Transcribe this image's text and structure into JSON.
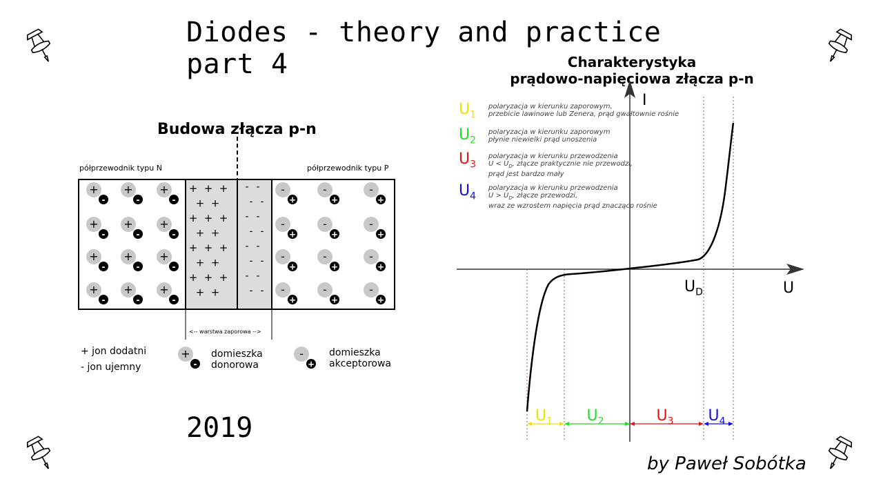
{
  "title": {
    "line1": "Diodes - theory and practice",
    "line2": "part 4"
  },
  "year": "2019",
  "author": "by Paweł Sobótka",
  "junction": {
    "heading": "Budowa złącza p-n",
    "n_label": "półprzewodnik typu  N",
    "p_label": "półprzewodnik typu  P",
    "depletion_label": "<-- warstwa zaporowa -->",
    "plus": "+",
    "minus": "-"
  },
  "legend": {
    "pos_ion": "+ jon dodatni",
    "neg_ion": "- jon ujemny",
    "donor_line1": "domieszka",
    "donor_line2": "donorowa",
    "acceptor_line1": "domieszka",
    "acceptor_line2": "akceptorowa"
  },
  "iv_chart": {
    "heading_line1": "Charakterystyka",
    "heading_line2": "prądowo-napięciowa złącza p-n",
    "axis_y": "I",
    "axis_x": "U",
    "ud_label": "U",
    "ud_sub": "D",
    "regions": [
      {
        "symbol": "U",
        "sub": "1",
        "color": "#f0e000",
        "lines": [
          "polaryzacja w kierunku zaporowym,",
          "przebicie lawinowe lub Zenera, prąd gwałtownie rośnie"
        ]
      },
      {
        "symbol": "U",
        "sub": "2",
        "color": "#22dd22",
        "lines": [
          "polaryzacja w kierunku zaporowym",
          "płynie niewielki prąd unoszenia"
        ]
      },
      {
        "symbol": "U",
        "sub": "3",
        "color": "#ee1111",
        "lines": [
          "polaryzacja w kierunku przewodzenia",
          "U < U",
          "prąd jest bardzo mały"
        ],
        "line2_rest": ", złącze praktycznie nie przewodzi,",
        "line2_sub": "D"
      },
      {
        "symbol": "U",
        "sub": "4",
        "color": "#1111dd",
        "lines": [
          "polaryzacja w kierunku przewodzenia",
          "U > U",
          "wraz ze wzrostem napięcia prąd znacząco rośnie"
        ],
        "line2_rest": ", złącze przewodzi,",
        "line2_sub": "D"
      }
    ]
  },
  "icons": [
    "pushpin-icon",
    "pushpin-icon",
    "pushpin-icon",
    "pushpin-icon"
  ],
  "colors": {
    "ion_fill": "#c8c8c8",
    "depletion_fill": "#dcdcdc",
    "guide_line": "#a05050"
  }
}
